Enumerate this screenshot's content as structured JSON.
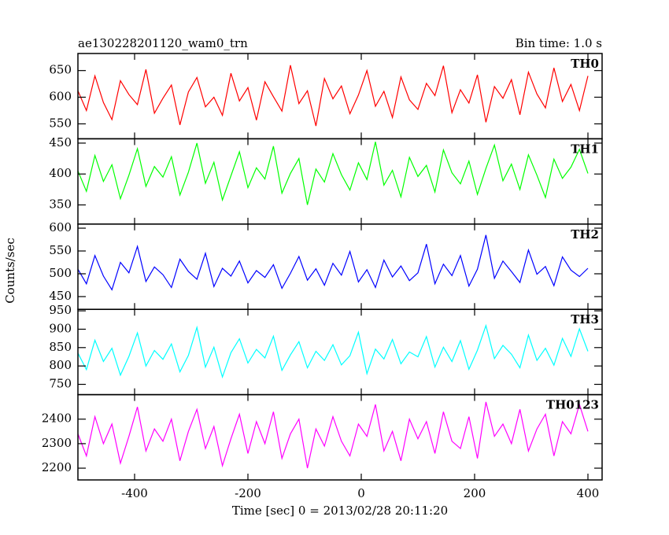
{
  "chart_data": {
    "type": "line",
    "title": "ae130228201120_wam0_trn",
    "subtitle": "Bin time: 1.0 s",
    "xlabel": "Time [sec] 0 = 2013/02/28 20:11:20",
    "ylabel": "Counts/sec",
    "xlim": [
      -500,
      425
    ],
    "xticks": [
      -400,
      -200,
      0,
      200,
      400
    ],
    "x": [
      -500,
      -485,
      -470,
      -455,
      -440,
      -425,
      -410,
      -395,
      -380,
      -365,
      -350,
      -335,
      -320,
      -305,
      -290,
      -275,
      -260,
      -245,
      -230,
      -215,
      -200,
      -185,
      -170,
      -155,
      -140,
      -125,
      -110,
      -95,
      -80,
      -65,
      -50,
      -35,
      -20,
      -5,
      10,
      25,
      40,
      55,
      70,
      85,
      100,
      115,
      130,
      145,
      160,
      175,
      190,
      205,
      220,
      235,
      250,
      265,
      280,
      295,
      310,
      325,
      340,
      355,
      370,
      385,
      400
    ],
    "series": [
      {
        "name": "TH0",
        "color": "#ff0000",
        "ylim": [
          522,
          682
        ],
        "yticks": [
          550,
          600,
          650
        ],
        "values": [
          612,
          575,
          640,
          590,
          558,
          631,
          605,
          586,
          652,
          570,
          598,
          623,
          548,
          610,
          637,
          582,
          600,
          566,
          645,
          593,
          618,
          557,
          629,
          601,
          574,
          660,
          588,
          612,
          546,
          635,
          597,
          621,
          569,
          604,
          650,
          583,
          611,
          562,
          638,
          595,
          577,
          626,
          603,
          659,
          571,
          614,
          589,
          642,
          553,
          620,
          598,
          633,
          567,
          647,
          606,
          580,
          655,
          592,
          624,
          575,
          640
        ]
      },
      {
        "name": "TH1",
        "color": "#00ff00",
        "ylim": [
          319,
          457
        ],
        "yticks": [
          350,
          400,
          450
        ],
        "values": [
          405,
          372,
          430,
          388,
          415,
          360,
          398,
          441,
          380,
          412,
          395,
          428,
          366,
          403,
          450,
          385,
          419,
          358,
          397,
          436,
          378,
          410,
          392,
          445,
          369,
          401,
          425,
          350,
          408,
          387,
          433,
          399,
          374,
          418,
          391,
          452,
          382,
          406,
          363,
          427,
          396,
          414,
          371,
          439,
          402,
          384,
          421,
          367,
          409,
          447,
          389,
          416,
          375,
          431,
          398,
          362,
          424,
          393,
          411,
          440,
          401
        ]
      },
      {
        "name": "TH2",
        "color": "#0000ff",
        "ylim": [
          422,
          609
        ],
        "yticks": [
          450,
          500,
          550,
          600
        ],
        "values": [
          510,
          478,
          540,
          495,
          465,
          525,
          502,
          560,
          483,
          515,
          498,
          470,
          532,
          505,
          488,
          545,
          472,
          512,
          495,
          528,
          480,
          507,
          492,
          520,
          468,
          501,
          538,
          486,
          511,
          475,
          523,
          497,
          549,
          482,
          509,
          470,
          530,
          493,
          517,
          485,
          502,
          565,
          478,
          521,
          496,
          540,
          473,
          510,
          585,
          490,
          528,
          505,
          481,
          552,
          499,
          516,
          474,
          537,
          508,
          494,
          512
        ]
      },
      {
        "name": "TH3",
        "color": "#00ffff",
        "ylim": [
          722,
          954
        ],
        "yticks": [
          750,
          800,
          850,
          900,
          950
        ],
        "values": [
          835,
          790,
          870,
          812,
          848,
          775,
          826,
          890,
          800,
          842,
          818,
          860,
          784,
          829,
          905,
          797,
          851,
          770,
          836,
          874,
          808,
          845,
          822,
          881,
          788,
          830,
          866,
          795,
          840,
          815,
          858,
          803,
          828,
          892,
          779,
          846,
          819,
          872,
          806,
          838,
          825,
          880,
          797,
          851,
          812,
          869,
          791,
          843,
          910,
          820,
          856,
          832,
          795,
          884,
          815,
          848,
          802,
          875,
          826,
          901,
          840
        ]
      },
      {
        "name": "TH0123",
        "color": "#ff00ff",
        "ylim": [
          2152,
          2500
        ],
        "yticks": [
          2200,
          2300,
          2400
        ],
        "values": [
          2340,
          2250,
          2410,
          2300,
          2380,
          2220,
          2330,
          2450,
          2270,
          2360,
          2310,
          2400,
          2230,
          2350,
          2440,
          2280,
          2370,
          2210,
          2320,
          2420,
          2260,
          2390,
          2300,
          2430,
          2240,
          2340,
          2400,
          2200,
          2360,
          2290,
          2410,
          2310,
          2250,
          2380,
          2330,
          2460,
          2270,
          2350,
          2230,
          2400,
          2320,
          2390,
          2260,
          2430,
          2310,
          2280,
          2410,
          2240,
          2470,
          2330,
          2380,
          2300,
          2440,
          2270,
          2360,
          2420,
          2250,
          2390,
          2340,
          2460,
          2350
        ]
      }
    ]
  }
}
